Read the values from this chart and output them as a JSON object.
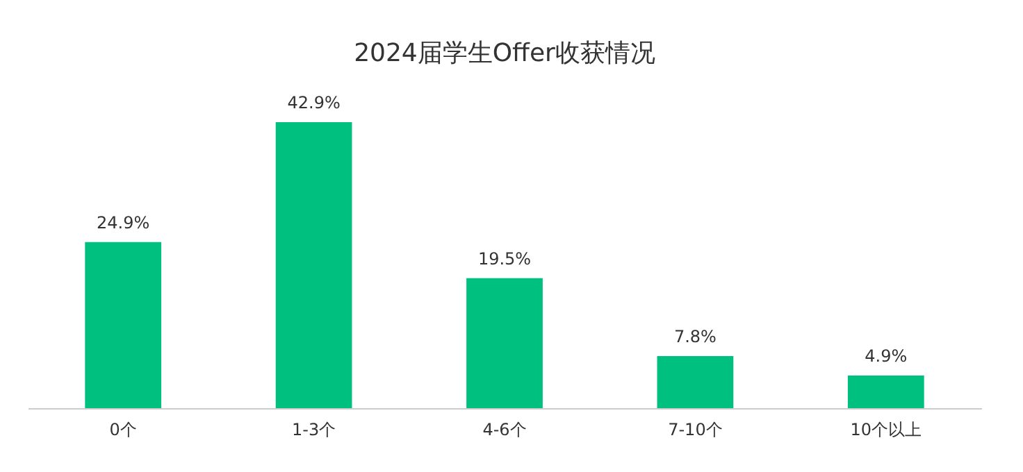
{
  "chart_data": {
    "type": "bar",
    "title": "2024届学生Offer收获情况",
    "categories": [
      "0个",
      "1-3个",
      "4-6个",
      "7-10个",
      "10个以上"
    ],
    "values": [
      24.9,
      42.9,
      19.5,
      7.8,
      4.9
    ],
    "value_labels": [
      "24.9%",
      "42.9%",
      "19.5%",
      "7.8%",
      "4.9%"
    ],
    "color": "#00c07f",
    "grid": false
  }
}
